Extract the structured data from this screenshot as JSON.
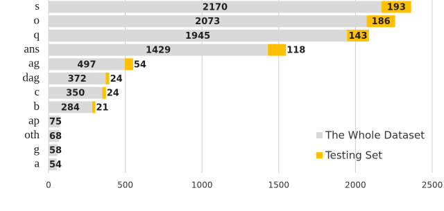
{
  "chart_data": {
    "type": "stacked-barh",
    "categories": [
      "s",
      "o",
      "q",
      "ans",
      "ag",
      "dag",
      "c",
      "b",
      "ap",
      "oth",
      "g",
      "a"
    ],
    "series": [
      {
        "name": "The Whole Dataset",
        "color": "#d9d9d9",
        "values": [
          2170,
          2073,
          1945,
          1429,
          497,
          372,
          350,
          284,
          75,
          68,
          58,
          54
        ]
      },
      {
        "name": "Testing Set",
        "color": "#ffc000",
        "values": [
          193,
          186,
          143,
          118,
          54,
          24,
          24,
          21,
          null,
          null,
          null,
          null
        ]
      }
    ],
    "xlim": [
      0,
      2500
    ],
    "xticks": [
      0,
      500,
      1000,
      1500,
      2000,
      2500
    ],
    "grid": true,
    "legend": "lower right"
  }
}
